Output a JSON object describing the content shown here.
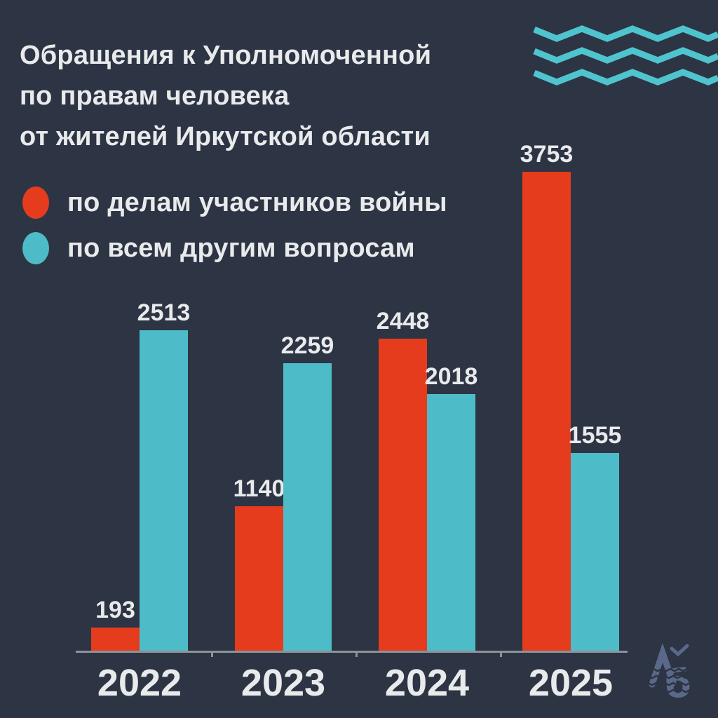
{
  "title": "Обращения к Уполномоченной\nпо правам человека\nот жителей Иркутской области",
  "legend": [
    {
      "label": "по делам участников войны",
      "color": "#e63c1e"
    },
    {
      "label": "по всем другим вопросам",
      "color": "#4dbcc8"
    }
  ],
  "chart_data": {
    "type": "bar",
    "categories": [
      "2022",
      "2023",
      "2024",
      "2025"
    ],
    "series": [
      {
        "name": "по делам участников войны",
        "color": "#e63c1e",
        "values": [
          193,
          1140,
          2448,
          3753
        ]
      },
      {
        "name": "по всем другим вопросам",
        "color": "#4dbcc8",
        "values": [
          2513,
          2259,
          2018,
          1555
        ]
      }
    ],
    "title": "Обращения к Уполномоченной по правам человека от жителей Иркутской области",
    "xlabel": "",
    "ylabel": "",
    "ylim": [
      0,
      3900
    ],
    "grid": false,
    "value_labels": true,
    "legend_position": "top-left"
  },
  "colors": {
    "background": "#2d3443",
    "text": "#e9eaec",
    "axis": "#8e9298",
    "wave_decoration": "#4fc4ce",
    "logo": "#5e6e91"
  },
  "watermark": {
    "name": "ЛБ"
  }
}
